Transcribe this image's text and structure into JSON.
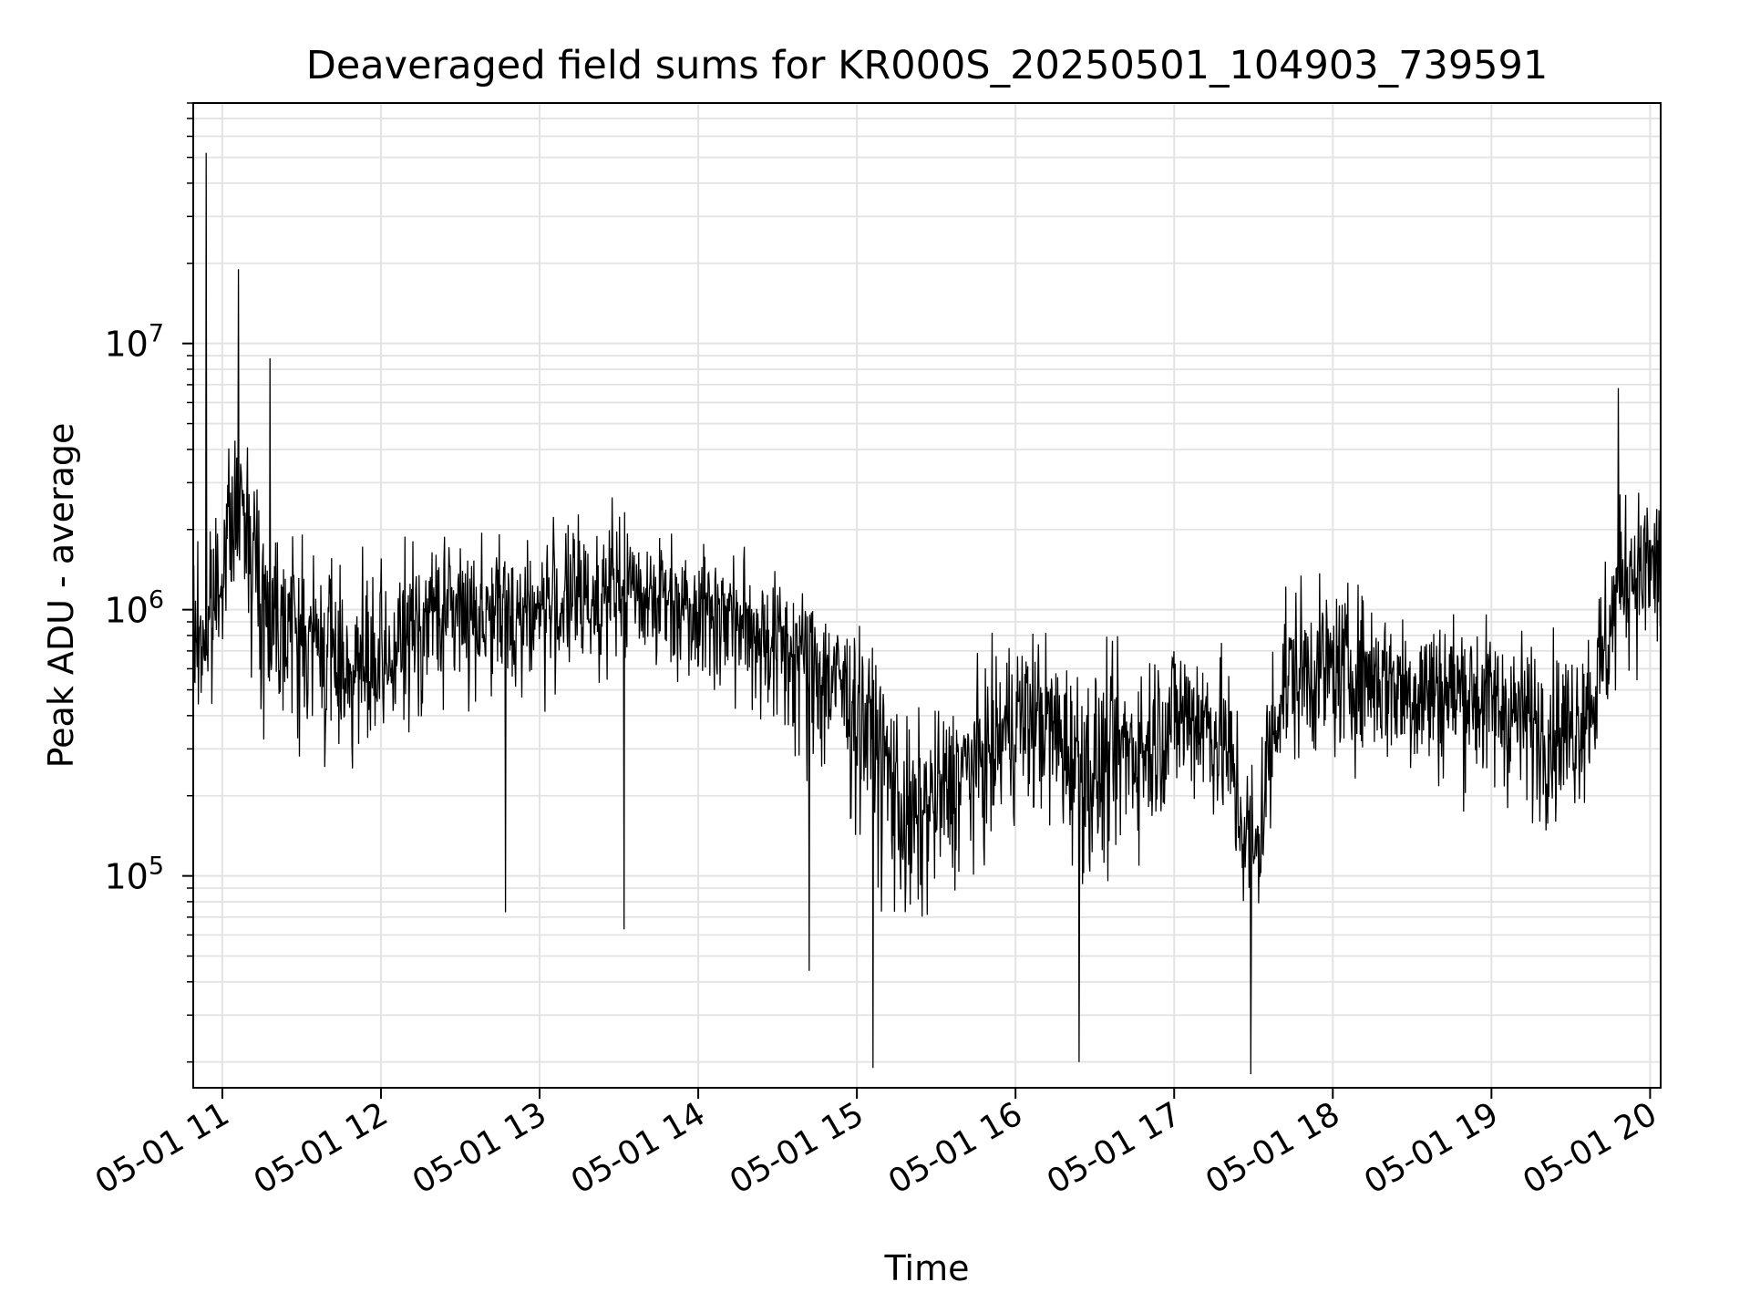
{
  "chart_data": {
    "type": "line",
    "title": "Deaveraged field sums for KR000S_20250501_104903_739591",
    "xlabel": "Time",
    "ylabel": "Peak ADU - average",
    "yscale": "log",
    "ylim": [
      16000,
      80000000
    ],
    "xlim": [
      "2025-05-01 10:49",
      "2025-05-01 20:04"
    ],
    "grid": "major and minor, light gray",
    "line_color": "#000000",
    "x_ticks": [
      "05-01 11",
      "05-01 12",
      "05-01 13",
      "05-01 14",
      "05-01 15",
      "05-01 16",
      "05-01 17",
      "05-01 18",
      "05-01 19",
      "05-01 20"
    ],
    "y_ticks": [
      {
        "value": 100000,
        "base": "10",
        "exp": "5"
      },
      {
        "value": 1000000,
        "base": "10",
        "exp": "6"
      },
      {
        "value": 10000000,
        "base": "10",
        "exp": "7"
      }
    ],
    "series": [
      {
        "x": [
          "2025-05-01 10:49",
          "2025-05-01 10:55",
          "2025-05-01 11:00",
          "2025-05-01 11:05",
          "2025-05-01 11:10",
          "2025-05-01 11:15",
          "2025-05-01 11:20",
          "2025-05-01 11:25",
          "2025-05-01 11:30",
          "2025-05-01 11:40",
          "2025-05-01 11:50",
          "2025-05-01 12:00",
          "2025-05-01 12:10",
          "2025-05-01 12:20",
          "2025-05-01 12:30",
          "2025-05-01 12:40",
          "2025-05-01 12:50",
          "2025-05-01 13:00",
          "2025-05-01 13:10",
          "2025-05-01 13:20",
          "2025-05-01 13:30",
          "2025-05-01 13:40",
          "2025-05-01 13:50",
          "2025-05-01 14:00",
          "2025-05-01 14:10",
          "2025-05-01 14:20",
          "2025-05-01 14:30",
          "2025-05-01 14:40",
          "2025-05-01 14:50",
          "2025-05-01 15:00",
          "2025-05-01 15:10",
          "2025-05-01 15:20",
          "2025-05-01 15:30",
          "2025-05-01 15:40",
          "2025-05-01 15:50",
          "2025-05-01 16:00",
          "2025-05-01 16:10",
          "2025-05-01 16:20",
          "2025-05-01 16:30",
          "2025-05-01 16:40",
          "2025-05-01 16:50",
          "2025-05-01 17:00",
          "2025-05-01 17:10",
          "2025-05-01 17:20",
          "2025-05-01 17:30",
          "2025-05-01 17:40",
          "2025-05-01 17:50",
          "2025-05-01 18:00",
          "2025-05-01 18:10",
          "2025-05-01 18:20",
          "2025-05-01 18:30",
          "2025-05-01 18:40",
          "2025-05-01 18:50",
          "2025-05-01 19:00",
          "2025-05-01 19:10",
          "2025-05-01 19:20",
          "2025-05-01 19:30",
          "2025-05-01 19:40",
          "2025-05-01 19:50",
          "2025-05-01 20:00",
          "2025-05-01 20:04"
        ],
        "y": [
          800000,
          800000,
          1500000,
          2000000,
          2200000,
          1000000,
          1000000,
          1000000,
          800000,
          700000,
          600000,
          550000,
          800000,
          1000000,
          1000000,
          1000000,
          1000000,
          1000000,
          1100000,
          1100000,
          1200000,
          1200000,
          1100000,
          1100000,
          1000000,
          900000,
          800000,
          700000,
          600000,
          500000,
          300000,
          150000,
          200000,
          250000,
          300000,
          400000,
          400000,
          300000,
          250000,
          300000,
          300000,
          400000,
          400000,
          300000,
          100000,
          500000,
          600000,
          600000,
          600000,
          550000,
          500000,
          500000,
          500000,
          450000,
          400000,
          350000,
          350000,
          500000,
          1500000,
          1500000,
          1500000
        ],
        "typical_range": [
          [
            150000,
            3000000
          ],
          [
            200000,
            4000000
          ],
          [
            500000,
            8000000
          ],
          [
            1000000,
            7000000
          ],
          [
            500000,
            9000000
          ],
          [
            200000,
            5000000
          ],
          [
            200000,
            5000000
          ],
          [
            200000,
            3000000
          ],
          [
            150000,
            3000000
          ],
          [
            150000,
            3000000
          ],
          [
            150000,
            2500000
          ],
          [
            150000,
            2500000
          ],
          [
            200000,
            3000000
          ],
          [
            250000,
            3000000
          ],
          [
            300000,
            3000000
          ],
          [
            250000,
            3000000
          ],
          [
            250000,
            3000000
          ],
          [
            300000,
            3000000
          ],
          [
            300000,
            3500000
          ],
          [
            350000,
            3500000
          ],
          [
            350000,
            3500000
          ],
          [
            400000,
            3000000
          ],
          [
            300000,
            3000000
          ],
          [
            300000,
            2500000
          ],
          [
            250000,
            2300000
          ],
          [
            200000,
            2200000
          ],
          [
            150000,
            2000000
          ],
          [
            100000,
            1800000
          ],
          [
            80000,
            1500000
          ],
          [
            50000,
            1200000
          ],
          [
            30000,
            1000000
          ],
          [
            25000,
            700000
          ],
          [
            40000,
            700000
          ],
          [
            50000,
            800000
          ],
          [
            60000,
            1000000
          ],
          [
            80000,
            1500000
          ],
          [
            80000,
            1500000
          ],
          [
            60000,
            1200000
          ],
          [
            40000,
            1200000
          ],
          [
            60000,
            1200000
          ],
          [
            80000,
            1500000
          ],
          [
            100000,
            1500000
          ],
          [
            100000,
            1500000
          ],
          [
            80000,
            1200000
          ],
          [
            20000,
            700000
          ],
          [
            150000,
            3000000
          ],
          [
            150000,
            2200000
          ],
          [
            150000,
            2000000
          ],
          [
            150000,
            2000000
          ],
          [
            150000,
            1800000
          ],
          [
            120000,
            1800000
          ],
          [
            120000,
            1800000
          ],
          [
            120000,
            1800000
          ],
          [
            110000,
            1500000
          ],
          [
            100000,
            1500000
          ],
          [
            90000,
            1400000
          ],
          [
            90000,
            1400000
          ],
          [
            150000,
            2500000
          ],
          [
            300000,
            4500000
          ],
          [
            300000,
            4500000
          ],
          [
            300000,
            4500000
          ]
        ],
        "spikes": [
          {
            "x": "2025-05-01 10:54",
            "y": 52000000
          },
          {
            "x": "2025-05-01 11:06",
            "y": 19000000
          },
          {
            "x": "2025-05-01 11:18",
            "y": 8800000
          },
          {
            "x": "2025-05-01 12:47",
            "y": 73000
          },
          {
            "x": "2025-05-01 13:32",
            "y": 63000
          },
          {
            "x": "2025-05-01 14:42",
            "y": 44000
          },
          {
            "x": "2025-05-01 15:06",
            "y": 19000
          },
          {
            "x": "2025-05-01 16:24",
            "y": 20000
          },
          {
            "x": "2025-05-01 17:29",
            "y": 18000
          },
          {
            "x": "2025-05-01 19:48",
            "y": 6800000
          }
        ]
      }
    ]
  }
}
